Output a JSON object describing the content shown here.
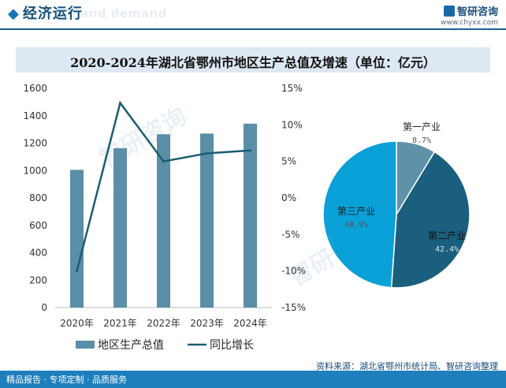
{
  "header": {
    "title": "经济运行",
    "subtitle": "and demand",
    "brand_name": "智研咨询",
    "brand_url": "www.chyxx.com"
  },
  "chart_title": "2020-2024年湖北省鄂州市地区生产总值及增速（单位：亿元）",
  "chart_data": [
    {
      "type": "bar",
      "categories": [
        "2020年",
        "2021年",
        "2022年",
        "2023年",
        "2024年"
      ],
      "series": [
        {
          "name": "地区生产总值",
          "type": "bar",
          "axis": "left",
          "values": [
            1005,
            1163,
            1265,
            1270,
            1342
          ]
        },
        {
          "name": "同比增长",
          "type": "line",
          "axis": "right",
          "values": [
            -10.0,
            13.0,
            5.0,
            6.1,
            6.5
          ]
        }
      ],
      "left_axis": {
        "min": 0,
        "max": 1600,
        "step": 200,
        "ticks": [
          "0",
          "200",
          "400",
          "600",
          "800",
          "1000",
          "1200",
          "1400",
          "1600"
        ]
      },
      "right_axis": {
        "min": -15,
        "max": 15,
        "step": 5,
        "ticks": [
          "-15%",
          "-10%",
          "-5%",
          "0%",
          "5%",
          "10%",
          "15%"
        ]
      },
      "legend": [
        "地区生产总值",
        "同比增长"
      ],
      "legend_position": "bottom",
      "colors": {
        "bar": "#5b8ea7",
        "line": "#1c5d72"
      }
    },
    {
      "type": "pie",
      "slices": [
        {
          "label": "第一产业",
          "pct_text": "8.7%",
          "value": 8.7,
          "color": "#5f91a8",
          "text_color": "#222222"
        },
        {
          "label": "第二产业",
          "pct_text": "42.4%",
          "value": 42.4,
          "color": "#1a5f7d",
          "text_color": "#ffffff"
        },
        {
          "label": "第三产业",
          "pct_text": "48.9%",
          "value": 48.9,
          "color": "#0aa0d8",
          "text_color": "#222222"
        }
      ]
    }
  ],
  "watermark": "智研咨询",
  "footer": {
    "left_text": "精品报告 · 专项定制 · 品质服务",
    "source": "资料来源：湖北省鄂州市统计局、智研咨询整理"
  }
}
